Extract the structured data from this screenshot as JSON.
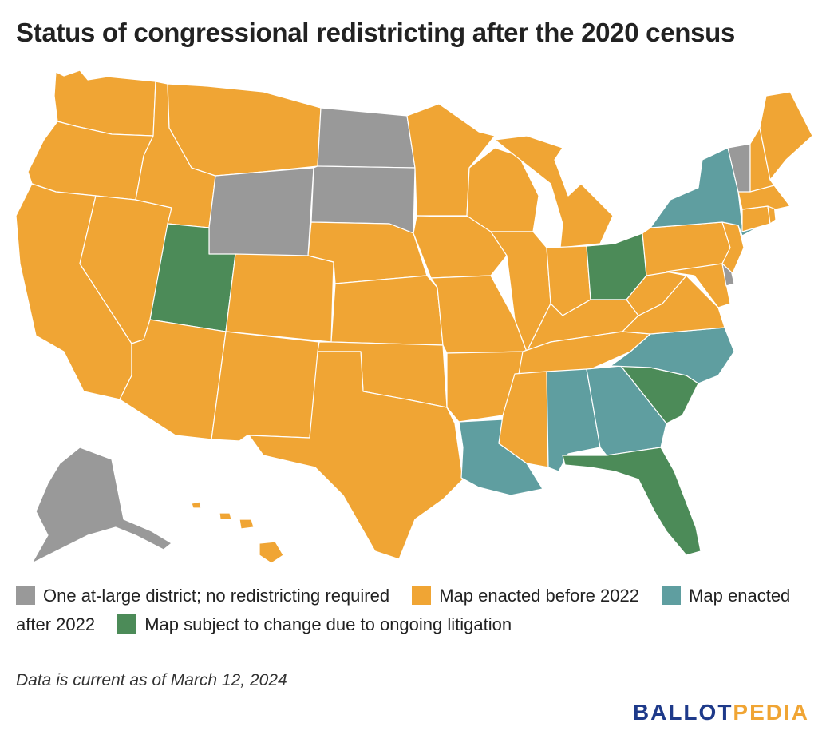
{
  "title": "Status of congressional redistricting after the 2020 census",
  "colors": {
    "at_large": "#999999",
    "before_2022": "#f0a534",
    "after_2022": "#5f9ea0",
    "litigation": "#4c8b58"
  },
  "legend": [
    {
      "key": "at_large",
      "label": "One at-large district; no redistricting required"
    },
    {
      "key": "before_2022",
      "label": "Map enacted before 2022"
    },
    {
      "key": "after_2022",
      "label": "Map enacted after 2022"
    },
    {
      "key": "litigation",
      "label": "Map subject to change due to ongoing litigation"
    }
  ],
  "states": {
    "at_large": [
      "Alaska",
      "Wyoming",
      "North Dakota",
      "South Dakota",
      "Vermont",
      "Delaware"
    ],
    "after_2022": [
      "New York",
      "North Carolina",
      "Alabama",
      "Georgia",
      "Louisiana"
    ],
    "litigation": [
      "Utah",
      "Ohio",
      "South Carolina",
      "Florida"
    ],
    "before_2022": [
      "All other states"
    ]
  },
  "note": "Data is current as of March 12, 2024",
  "logo": {
    "part1": "BALLOT",
    "part2": "PEDIA"
  }
}
